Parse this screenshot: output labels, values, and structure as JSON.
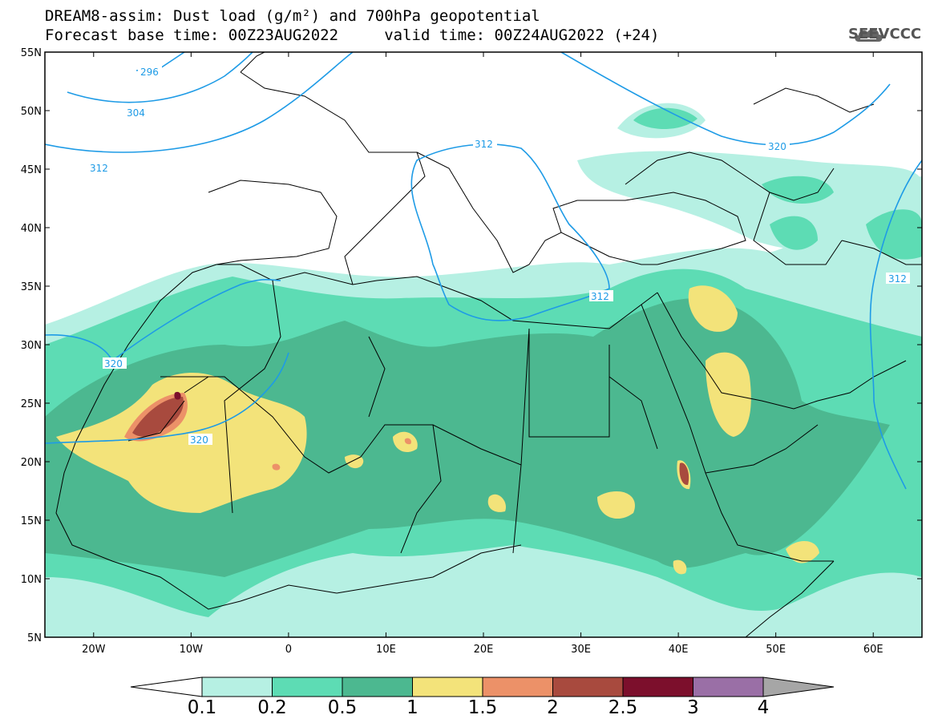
{
  "title": {
    "line1": "DREAM8-assim: Dust load (g/m²) and 700hPa geopotential",
    "line2": "Forecast base time: 00Z23AUG2022     valid time: 00Z24AUG2022 (+24)"
  },
  "logo": {
    "text": "SEEVCCC",
    "icon": "cloud-logo-icon"
  },
  "axes": {
    "lat_labels": [
      "55N",
      "50N",
      "45N",
      "40N",
      "35N",
      "30N",
      "25N",
      "20N",
      "15N",
      "10N",
      "5N"
    ],
    "lon_labels": [
      "20W",
      "10W",
      "0",
      "10E",
      "20E",
      "30E",
      "40E",
      "50E",
      "60E"
    ],
    "lon_range": [
      -25,
      65
    ],
    "lat_range": [
      5,
      55
    ]
  },
  "contours": {
    "label_values": [
      "296",
      "304",
      "312",
      "312",
      "320",
      "312",
      "320",
      "320",
      "312"
    ],
    "color": "#1e9be6"
  },
  "colorbar": {
    "labels": [
      "0.1",
      "0.2",
      "0.5",
      "1",
      "1.5",
      "2",
      "2.5",
      "3",
      "4"
    ],
    "colors": [
      "#b6f0e3",
      "#5ddcb4",
      "#4cb890",
      "#f3e37a",
      "#ec9168",
      "#a84a3e",
      "#7c0f2c",
      "#9a6fa6",
      "#a6a6a6"
    ]
  }
}
